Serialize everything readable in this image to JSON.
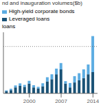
{
  "chart_data": {
    "type": "bar",
    "title": "nd and inauguration volumes($b)",
    "subtitle": "loans",
    "x": [
      1995,
      1996,
      1997,
      1998,
      1999,
      2000,
      2001,
      2002,
      2003,
      2004,
      2005,
      2006,
      2007,
      2008,
      2009,
      2010,
      2011,
      2012,
      2013,
      2014
    ],
    "series": [
      {
        "name": "Leveraged loans",
        "color": "#1a5276",
        "values": [
          20,
          30,
          55,
          70,
          60,
          90,
          55,
          45,
          65,
          110,
          130,
          175,
          220,
          90,
          55,
          100,
          120,
          140,
          175,
          195
        ]
      },
      {
        "name": "High-yield corporate bonds",
        "color": "#5dade2",
        "values": [
          8,
          12,
          18,
          22,
          18,
          25,
          20,
          15,
          28,
          38,
          45,
          52,
          58,
          22,
          40,
          58,
          65,
          80,
          90,
          330
        ]
      }
    ],
    "stacked": true,
    "xlim": [
      1994.3,
      2015
    ],
    "xticks": [
      2000,
      2007,
      2014
    ],
    "ylim": [
      0,
      560
    ],
    "reference_line": 430,
    "grid": false,
    "legend": "top",
    "tick_labels": "x"
  }
}
